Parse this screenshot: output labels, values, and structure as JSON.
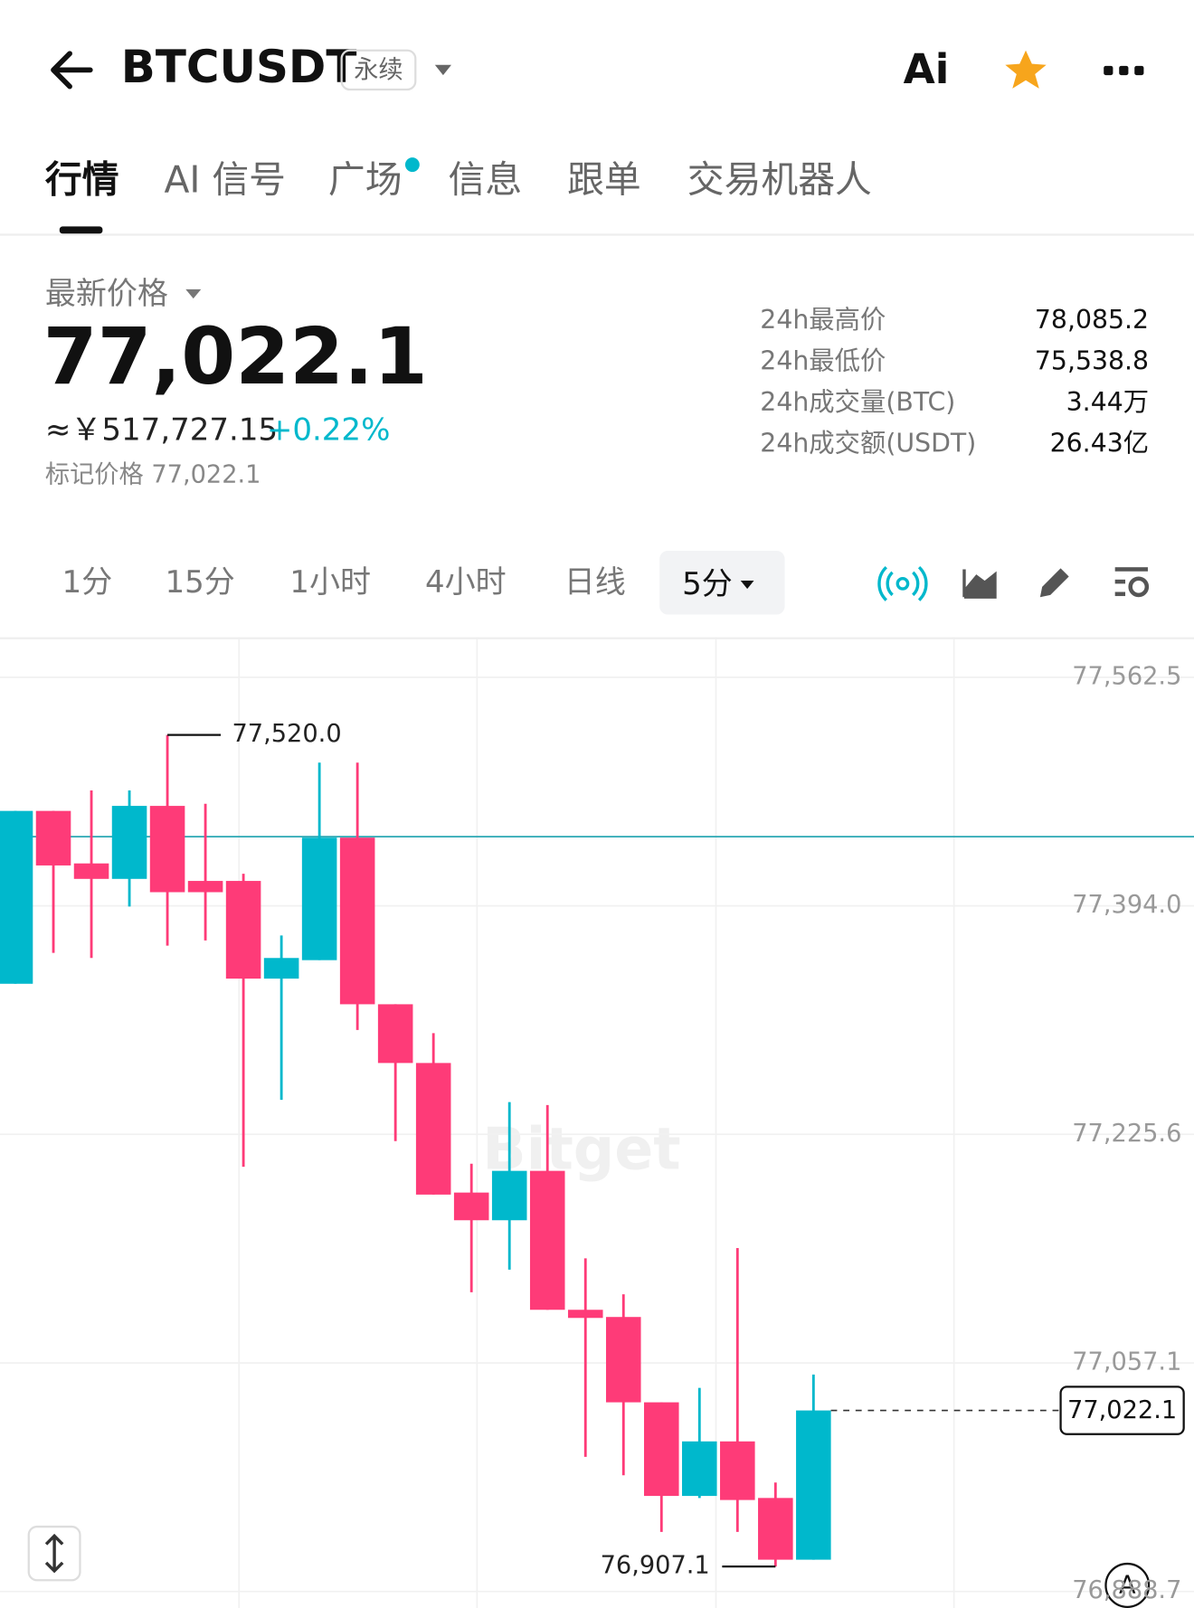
{
  "header": {
    "symbol": "BTCUSDT",
    "badge": "永续",
    "ai": "Ai"
  },
  "tabs": [
    "行情",
    "AI 信号",
    "广场",
    "信息",
    "跟单",
    "交易机器人"
  ],
  "price": {
    "label": "最新价格",
    "last": "77,022.1",
    "cny": "≈￥517,727.15",
    "change": "+0.22%",
    "mark": "标记价格 77,022.1"
  },
  "stats": [
    {
      "label": "24h最高价",
      "value": "78,085.2"
    },
    {
      "label": "24h最低价",
      "value": "75,538.8"
    },
    {
      "label": "24h成交量(BTC)",
      "value": "3.44万"
    },
    {
      "label": "24h成交额(USDT)",
      "value": "26.43亿"
    }
  ],
  "timeframes": [
    "1分",
    "15分",
    "1小时",
    "4小时",
    "日线",
    "5分"
  ],
  "watermark": "Bitget",
  "scale_button": "A",
  "chart_data": {
    "type": "candlestick",
    "open": [
      77336.6,
      77464.0,
      77425.3,
      77413.9,
      77467.7,
      77412.4,
      77412.4,
      77340.4,
      77354.0,
      77444.3,
      77321.5,
      77278.2,
      77182.7,
      77162.3,
      77198.7,
      77096.3,
      77091.0,
      77028.1,
      76959.1,
      76999.3,
      76957.6,
      76912.1
    ],
    "high": [
      77464.0,
      77464.0,
      77479.1,
      77479.1,
      77520.0,
      77469.3,
      77417.7,
      77372.2,
      77499.6,
      77499.6,
      77321.5,
      77300.2,
      77204.0,
      77249.4,
      77247.2,
      77134.2,
      77107.7,
      77028.1,
      77038.7,
      77141.8,
      76969.0,
      77048.6
    ],
    "low": [
      77336.6,
      77359.4,
      77355.6,
      77393.5,
      77364.7,
      77368.5,
      77201.7,
      77251.0,
      77354.0,
      77302.5,
      77220.6,
      77181.2,
      77109.2,
      77125.9,
      77096.3,
      76987.9,
      76974.3,
      76932.6,
      76957.6,
      76932.6,
      76907.1,
      76912.1
    ],
    "close": [
      77464.0,
      77423.8,
      77413.9,
      77467.7,
      77404.1,
      77404.1,
      77340.4,
      77355.6,
      77444.3,
      77321.5,
      77278.2,
      77181.2,
      77162.3,
      77198.7,
      77096.3,
      77090.3,
      77028.1,
      76959.1,
      76999.3,
      76956.1,
      76912.1,
      77022.1
    ],
    "ylim": [
      76876.5,
      77590.5
    ],
    "yticks": [
      {
        "value": 77562.5,
        "label": "77,562.5"
      },
      {
        "value": 77394.0,
        "label": "77,394.0"
      },
      {
        "value": 77225.6,
        "label": "77,225.6"
      },
      {
        "value": 77057.1,
        "label": "77,057.1"
      },
      {
        "value": 76888.7,
        "label": "76,888.7"
      }
    ],
    "up_color": "#00b8cc",
    "down_color": "#fe3b78",
    "reference_line": 77445.0,
    "grid": true,
    "annotations": [
      {
        "kind": "high",
        "text": "77,520.0",
        "value": 77520.0
      },
      {
        "kind": "low",
        "text": "76,907.1",
        "value": 76907.1
      },
      {
        "kind": "last",
        "text": "77,022.1",
        "value": 77022.1
      }
    ]
  }
}
